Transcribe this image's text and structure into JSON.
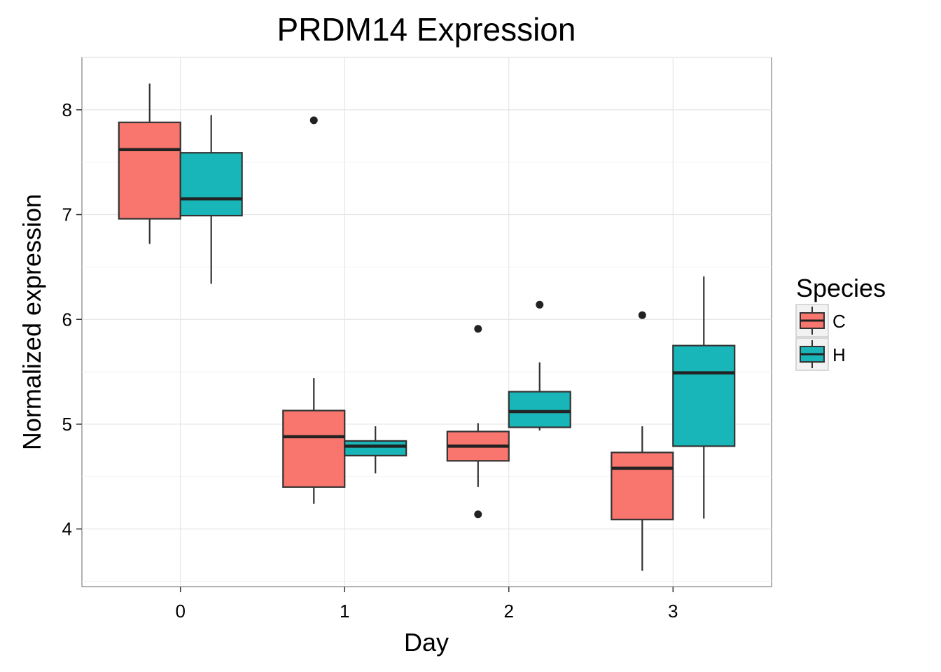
{
  "chart_data": {
    "type": "boxplot",
    "title": "PRDM14 Expression",
    "xlabel": "Day",
    "ylabel": "Normalized expression",
    "categories": [
      "0",
      "1",
      "2",
      "3"
    ],
    "ylim": [
      3.45,
      8.5
    ],
    "yticks": [
      "4",
      "5",
      "6",
      "7",
      "8"
    ],
    "grid": true,
    "legend": {
      "title": "Species",
      "position": "right"
    },
    "series": [
      {
        "name": "C",
        "color": "#F8766D",
        "boxes": [
          {
            "min": 6.72,
            "q1": 6.96,
            "median": 7.62,
            "q3": 7.88,
            "max": 8.25,
            "outliers": []
          },
          {
            "min": 4.24,
            "q1": 4.4,
            "median": 4.88,
            "q3": 5.13,
            "max": 5.44,
            "outliers": [
              7.9
            ]
          },
          {
            "min": 4.4,
            "q1": 4.65,
            "median": 4.79,
            "q3": 4.93,
            "max": 5.01,
            "outliers": [
              5.91,
              4.14
            ]
          },
          {
            "min": 3.6,
            "q1": 4.09,
            "median": 4.58,
            "q3": 4.73,
            "max": 4.98,
            "outliers": [
              6.04
            ]
          }
        ]
      },
      {
        "name": "H",
        "color": "#19B6B9",
        "boxes": [
          {
            "min": 6.34,
            "q1": 6.99,
            "median": 7.15,
            "q3": 7.59,
            "max": 7.95,
            "outliers": []
          },
          {
            "min": 4.53,
            "q1": 4.7,
            "median": 4.79,
            "q3": 4.84,
            "max": 4.98,
            "outliers": []
          },
          {
            "min": 4.94,
            "q1": 4.97,
            "median": 5.12,
            "q3": 5.31,
            "max": 5.59,
            "outliers": [
              6.14
            ]
          },
          {
            "min": 4.1,
            "q1": 4.79,
            "median": 5.49,
            "q3": 5.75,
            "max": 6.41,
            "outliers": []
          }
        ]
      }
    ]
  }
}
